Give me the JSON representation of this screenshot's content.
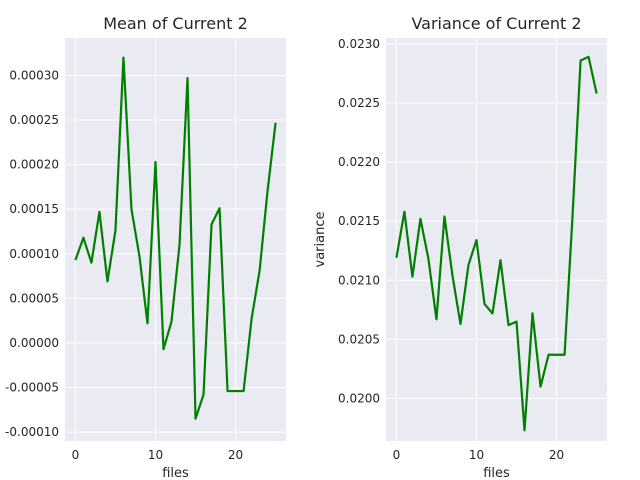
{
  "colors": {
    "background": "#EAEAF2",
    "grid": "#FFFFFF",
    "line": "#008000",
    "text": "#262626"
  },
  "chart_data": [
    {
      "type": "line",
      "title": "Mean of Current 2",
      "xlabel": "files",
      "ylabel": "",
      "grid": true,
      "xlim": [
        -1.3,
        26.3
      ],
      "ylim": [
        -0.00011,
        0.000342
      ],
      "x_ticks": [
        0,
        10,
        20
      ],
      "x_tick_labels": [
        "0",
        "10",
        "20"
      ],
      "y_ticks": [
        -0.0001,
        -5e-05,
        0,
        5e-05,
        0.0001,
        0.00015,
        0.0002,
        0.00025,
        0.0003
      ],
      "y_tick_labels": [
        "-0.00010",
        "-0.00005",
        "0.00000",
        "0.00005",
        "0.00010",
        "0.00015",
        "0.00020",
        "0.00025",
        "0.00030"
      ],
      "series": [
        {
          "color": "#008000",
          "x": [
            0,
            1,
            2,
            3,
            4,
            5,
            6,
            7,
            8,
            9,
            10,
            11,
            12,
            13,
            14,
            15,
            16,
            17,
            18,
            19,
            20,
            21,
            22,
            23,
            24,
            25
          ],
          "values": [
            9.3e-05,
            0.000118,
            9e-05,
            0.000147,
            6.9e-05,
            0.000126,
            0.00032,
            0.00015,
            9.7e-05,
            2.2e-05,
            0.000203,
            -7e-06,
            2.4e-05,
            0.00011,
            0.000297,
            -8.5e-05,
            -5.8e-05,
            0.000133,
            0.000151,
            -5.4e-05,
            -5.4e-05,
            -5.4e-05,
            2.7e-05,
            8.1e-05,
            0.000171,
            0.000247
          ]
        }
      ]
    },
    {
      "type": "line",
      "title": "Variance of Current 2",
      "xlabel": "files",
      "ylabel": "variance",
      "grid": true,
      "xlim": [
        -1.3,
        26.3
      ],
      "ylim": [
        0.01964,
        0.02305
      ],
      "x_ticks": [
        0,
        10,
        20
      ],
      "x_tick_labels": [
        "0",
        "10",
        "20"
      ],
      "y_ticks": [
        0.02,
        0.0205,
        0.021,
        0.0215,
        0.022,
        0.0225,
        0.023
      ],
      "y_tick_labels": [
        "0.0200",
        "0.0205",
        "0.0210",
        "0.0215",
        "0.0220",
        "0.0225",
        "0.0230"
      ],
      "series": [
        {
          "color": "#008000",
          "x": [
            0,
            1,
            2,
            3,
            4,
            5,
            6,
            7,
            8,
            9,
            10,
            11,
            12,
            13,
            14,
            15,
            16,
            17,
            18,
            19,
            20,
            21,
            22,
            23,
            24,
            25
          ],
          "values": [
            0.02119,
            0.02158,
            0.02103,
            0.02152,
            0.02118,
            0.02067,
            0.02154,
            0.02104,
            0.02063,
            0.02113,
            0.02134,
            0.0208,
            0.02072,
            0.02117,
            0.02062,
            0.02065,
            0.01973,
            0.02072,
            0.0201,
            0.02037,
            0.02037,
            0.02037,
            0.02155,
            0.02286,
            0.02289,
            0.02258
          ]
        }
      ]
    }
  ]
}
